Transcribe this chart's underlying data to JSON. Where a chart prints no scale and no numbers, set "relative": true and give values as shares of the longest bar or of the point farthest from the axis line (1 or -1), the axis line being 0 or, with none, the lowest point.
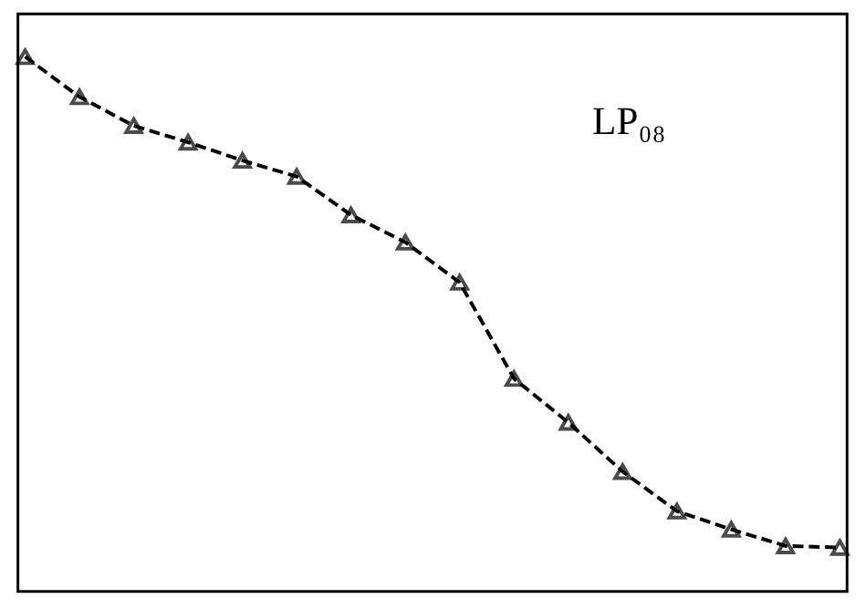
{
  "chart_data": {
    "type": "line",
    "relative": true,
    "marker": "triangle",
    "line_style": "dashed",
    "grid": false,
    "tick_labels": false,
    "categories": [
      null,
      null,
      null,
      null,
      null,
      null,
      null,
      null,
      null,
      null,
      null,
      null,
      null,
      null,
      null,
      null
    ],
    "series": [
      {
        "color": "#000000",
        "values": [
          1.0,
          0.925,
          0.871,
          0.84,
          0.806,
          0.776,
          0.704,
          0.653,
          0.578,
          0.398,
          0.316,
          0.224,
          0.15,
          0.116,
          0.085,
          0.082
        ]
      }
    ],
    "annotations": [
      "LP₀₈"
    ]
  }
}
